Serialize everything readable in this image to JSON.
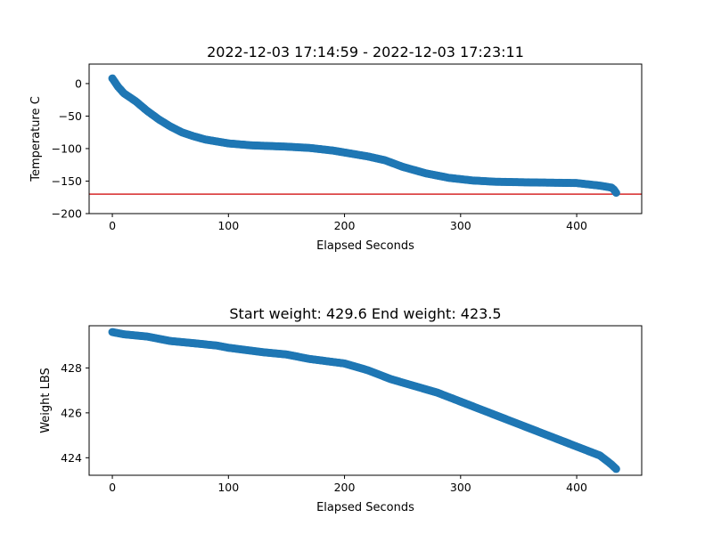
{
  "chart_data": [
    {
      "type": "scatter",
      "title": "2022-12-03 17:14:59 - 2022-12-03 17:23:11",
      "xlabel": "Elapsed Seconds",
      "ylabel": "Temperature C",
      "xlim": [
        -20,
        456
      ],
      "ylim": [
        -200,
        30
      ],
      "xticks": [
        0,
        100,
        200,
        300,
        400
      ],
      "yticks": [
        0,
        -50,
        -100,
        -150,
        -200
      ],
      "xtick_labels": [
        "0",
        "100",
        "200",
        "300",
        "400"
      ],
      "ytick_labels": [
        "0",
        "−50",
        "−100",
        "−150",
        "−200"
      ],
      "grid": false,
      "point_color": "#1f77b4",
      "reference_line": {
        "y": -170,
        "color": "#d62728"
      },
      "curve": [
        [
          0,
          8
        ],
        [
          5,
          -5
        ],
        [
          10,
          -15
        ],
        [
          20,
          -27
        ],
        [
          30,
          -42
        ],
        [
          40,
          -55
        ],
        [
          50,
          -66
        ],
        [
          60,
          -75
        ],
        [
          70,
          -81
        ],
        [
          80,
          -86
        ],
        [
          100,
          -92
        ],
        [
          120,
          -95
        ],
        [
          150,
          -97
        ],
        [
          170,
          -99
        ],
        [
          190,
          -103
        ],
        [
          200,
          -106
        ],
        [
          220,
          -112
        ],
        [
          235,
          -118
        ],
        [
          250,
          -128
        ],
        [
          270,
          -138
        ],
        [
          290,
          -145
        ],
        [
          310,
          -149
        ],
        [
          330,
          -151
        ],
        [
          360,
          -152
        ],
        [
          400,
          -153
        ],
        [
          420,
          -157
        ],
        [
          430,
          -160
        ],
        [
          432,
          -163
        ],
        [
          434,
          -168
        ]
      ]
    },
    {
      "type": "scatter",
      "title": "Start weight: 429.6 End weight: 423.5",
      "xlabel": "Elapsed Seconds",
      "ylabel": "Weight LBS",
      "xlim": [
        -20,
        456
      ],
      "ylim": [
        423.22,
        429.88
      ],
      "xticks": [
        0,
        100,
        200,
        300,
        400
      ],
      "yticks": [
        424,
        426,
        428
      ],
      "xtick_labels": [
        "0",
        "100",
        "200",
        "300",
        "400"
      ],
      "ytick_labels": [
        "424",
        "426",
        "428"
      ],
      "grid": false,
      "point_color": "#1f77b4",
      "curve": [
        [
          0,
          429.6
        ],
        [
          10,
          429.5
        ],
        [
          30,
          429.4
        ],
        [
          50,
          429.2
        ],
        [
          70,
          429.1
        ],
        [
          90,
          429.0
        ],
        [
          100,
          428.9
        ],
        [
          130,
          428.7
        ],
        [
          150,
          428.6
        ],
        [
          170,
          428.4
        ],
        [
          200,
          428.2
        ],
        [
          220,
          427.9
        ],
        [
          240,
          427.5
        ],
        [
          260,
          427.2
        ],
        [
          280,
          426.9
        ],
        [
          300,
          426.5
        ],
        [
          320,
          426.1
        ],
        [
          340,
          425.7
        ],
        [
          360,
          425.3
        ],
        [
          380,
          424.9
        ],
        [
          400,
          424.5
        ],
        [
          420,
          424.1
        ],
        [
          430,
          423.7
        ],
        [
          434,
          423.5
        ]
      ]
    }
  ]
}
